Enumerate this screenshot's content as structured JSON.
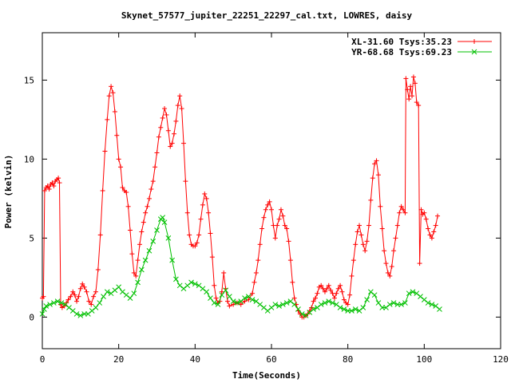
{
  "chart_data": {
    "type": "line",
    "title": "Skynet_57577_jupiter_22251_22297_cal.txt, LOWRES, daisy",
    "xlabel": "Time(Seconds)",
    "ylabel": "Power (kelvin)",
    "xlim": [
      0,
      120
    ],
    "ylim": [
      -2,
      18
    ],
    "xticks": [
      0,
      20,
      40,
      60,
      80,
      100,
      120
    ],
    "yticks": [
      0,
      5,
      10,
      15
    ],
    "legend_position": "top-right",
    "grid": false,
    "series": [
      {
        "name": "XL-31.60 Tsys:35.23",
        "color": "#ff0000",
        "marker": "plus",
        "points": [
          [
            0.0,
            1.2
          ],
          [
            0.3,
            1.3
          ],
          [
            0.6,
            8.0
          ],
          [
            1.0,
            8.2
          ],
          [
            1.4,
            8.3
          ],
          [
            1.8,
            8.1
          ],
          [
            2.2,
            8.4
          ],
          [
            2.6,
            8.5
          ],
          [
            3.0,
            8.3
          ],
          [
            3.4,
            8.6
          ],
          [
            3.8,
            8.7
          ],
          [
            4.2,
            8.8
          ],
          [
            4.5,
            8.5
          ],
          [
            4.8,
            0.8
          ],
          [
            5.2,
            0.6
          ],
          [
            5.8,
            0.7
          ],
          [
            6.3,
            0.9
          ],
          [
            6.8,
            1.1
          ],
          [
            7.4,
            1.3
          ],
          [
            8.0,
            1.6
          ],
          [
            8.5,
            1.4
          ],
          [
            9.0,
            1.0
          ],
          [
            9.5,
            1.3
          ],
          [
            10.0,
            1.8
          ],
          [
            10.5,
            2.1
          ],
          [
            11.0,
            1.9
          ],
          [
            11.6,
            1.6
          ],
          [
            12.2,
            1.0
          ],
          [
            12.8,
            0.8
          ],
          [
            13.4,
            1.3
          ],
          [
            14.0,
            1.6
          ],
          [
            14.6,
            3.0
          ],
          [
            15.2,
            5.2
          ],
          [
            15.8,
            8.0
          ],
          [
            16.4,
            10.5
          ],
          [
            17.0,
            12.5
          ],
          [
            17.5,
            14.0
          ],
          [
            18.0,
            14.6
          ],
          [
            18.5,
            14.2
          ],
          [
            19.0,
            13.0
          ],
          [
            19.5,
            11.5
          ],
          [
            20.0,
            10.0
          ],
          [
            20.5,
            9.5
          ],
          [
            21.0,
            8.2
          ],
          [
            21.5,
            8.0
          ],
          [
            22.0,
            7.9
          ],
          [
            22.5,
            7.0
          ],
          [
            23.0,
            5.5
          ],
          [
            23.5,
            4.0
          ],
          [
            24.0,
            2.8
          ],
          [
            24.5,
            2.6
          ],
          [
            25.0,
            3.6
          ],
          [
            25.5,
            4.6
          ],
          [
            26.0,
            5.4
          ],
          [
            26.5,
            6.0
          ],
          [
            27.0,
            6.6
          ],
          [
            27.5,
            7.0
          ],
          [
            28.0,
            7.5
          ],
          [
            28.5,
            8.1
          ],
          [
            29.0,
            8.6
          ],
          [
            29.5,
            9.5
          ],
          [
            30.0,
            10.4
          ],
          [
            30.5,
            11.4
          ],
          [
            31.0,
            12.0
          ],
          [
            31.5,
            12.6
          ],
          [
            32.0,
            13.2
          ],
          [
            32.5,
            12.8
          ],
          [
            33.0,
            11.8
          ],
          [
            33.5,
            10.8
          ],
          [
            34.0,
            11.0
          ],
          [
            34.5,
            11.6
          ],
          [
            35.0,
            12.4
          ],
          [
            35.5,
            13.4
          ],
          [
            36.0,
            14.0
          ],
          [
            36.5,
            13.2
          ],
          [
            37.0,
            11.0
          ],
          [
            37.5,
            8.6
          ],
          [
            38.0,
            6.6
          ],
          [
            38.5,
            5.2
          ],
          [
            39.0,
            4.6
          ],
          [
            39.5,
            4.5
          ],
          [
            40.0,
            4.5
          ],
          [
            40.5,
            4.7
          ],
          [
            41.0,
            5.2
          ],
          [
            41.5,
            6.2
          ],
          [
            42.0,
            7.1
          ],
          [
            42.5,
            7.8
          ],
          [
            43.0,
            7.5
          ],
          [
            43.5,
            6.6
          ],
          [
            44.0,
            5.3
          ],
          [
            44.5,
            3.8
          ],
          [
            45.0,
            2.0
          ],
          [
            45.5,
            1.2
          ],
          [
            46.0,
            0.9
          ],
          [
            46.5,
            1.0
          ],
          [
            47.0,
            1.6
          ],
          [
            47.5,
            2.8
          ],
          [
            48.0,
            1.8
          ],
          [
            48.5,
            1.0
          ],
          [
            49.0,
            0.7
          ],
          [
            50.0,
            0.8
          ],
          [
            51.0,
            0.9
          ],
          [
            52.0,
            0.8
          ],
          [
            53.0,
            1.0
          ],
          [
            54.0,
            1.1
          ],
          [
            55.0,
            1.5
          ],
          [
            55.5,
            2.2
          ],
          [
            56.0,
            2.8
          ],
          [
            56.5,
            3.6
          ],
          [
            57.0,
            4.6
          ],
          [
            57.5,
            5.6
          ],
          [
            58.0,
            6.3
          ],
          [
            58.5,
            6.8
          ],
          [
            59.0,
            7.1
          ],
          [
            59.5,
            7.3
          ],
          [
            60.0,
            6.8
          ],
          [
            60.5,
            5.8
          ],
          [
            61.0,
            5.0
          ],
          [
            61.5,
            5.8
          ],
          [
            62.0,
            6.2
          ],
          [
            62.5,
            6.8
          ],
          [
            63.0,
            6.4
          ],
          [
            63.5,
            5.8
          ],
          [
            64.0,
            5.6
          ],
          [
            64.5,
            4.8
          ],
          [
            65.0,
            3.6
          ],
          [
            65.5,
            2.2
          ],
          [
            66.0,
            1.2
          ],
          [
            66.5,
            0.8
          ],
          [
            67.0,
            0.4
          ],
          [
            67.5,
            0.2
          ],
          [
            68.0,
            0.0
          ],
          [
            68.5,
            0.0
          ],
          [
            69.0,
            0.1
          ],
          [
            69.5,
            0.2
          ],
          [
            70.0,
            0.4
          ],
          [
            70.5,
            0.6
          ],
          [
            71.0,
            1.0
          ],
          [
            71.5,
            1.2
          ],
          [
            72.0,
            1.5
          ],
          [
            72.5,
            1.9
          ],
          [
            73.0,
            2.0
          ],
          [
            73.5,
            1.8
          ],
          [
            74.0,
            1.6
          ],
          [
            74.5,
            1.8
          ],
          [
            75.0,
            2.0
          ],
          [
            75.5,
            1.7
          ],
          [
            76.0,
            1.5
          ],
          [
            76.5,
            1.2
          ],
          [
            77.0,
            1.5
          ],
          [
            77.5,
            1.8
          ],
          [
            78.0,
            2.0
          ],
          [
            78.5,
            1.6
          ],
          [
            79.0,
            1.1
          ],
          [
            79.5,
            0.9
          ],
          [
            80.0,
            0.8
          ],
          [
            80.5,
            1.4
          ],
          [
            81.0,
            2.6
          ],
          [
            81.5,
            3.6
          ],
          [
            82.0,
            4.6
          ],
          [
            82.5,
            5.4
          ],
          [
            83.0,
            5.8
          ],
          [
            83.5,
            5.2
          ],
          [
            84.0,
            4.6
          ],
          [
            84.5,
            4.2
          ],
          [
            85.0,
            4.8
          ],
          [
            85.5,
            5.8
          ],
          [
            86.0,
            7.4
          ],
          [
            86.5,
            8.8
          ],
          [
            87.0,
            9.7
          ],
          [
            87.5,
            9.9
          ],
          [
            88.0,
            9.0
          ],
          [
            88.5,
            7.0
          ],
          [
            89.0,
            5.6
          ],
          [
            89.5,
            4.2
          ],
          [
            90.0,
            3.4
          ],
          [
            90.5,
            2.8
          ],
          [
            91.0,
            2.6
          ],
          [
            91.5,
            3.2
          ],
          [
            92.0,
            4.2
          ],
          [
            92.5,
            5.0
          ],
          [
            93.0,
            5.8
          ],
          [
            93.5,
            6.6
          ],
          [
            94.0,
            7.0
          ],
          [
            94.5,
            6.8
          ],
          [
            95.0,
            6.6
          ],
          [
            95.2,
            15.1
          ],
          [
            95.6,
            14.4
          ],
          [
            96.0,
            13.8
          ],
          [
            96.4,
            14.6
          ],
          [
            96.8,
            14.0
          ],
          [
            97.2,
            15.2
          ],
          [
            97.6,
            14.8
          ],
          [
            98.0,
            13.6
          ],
          [
            98.5,
            13.4
          ],
          [
            98.8,
            3.4
          ],
          [
            99.2,
            6.8
          ],
          [
            99.6,
            6.5
          ],
          [
            100.0,
            6.6
          ],
          [
            100.5,
            6.2
          ],
          [
            101.0,
            5.6
          ],
          [
            101.5,
            5.2
          ],
          [
            102.0,
            5.0
          ],
          [
            102.5,
            5.4
          ],
          [
            103.0,
            5.8
          ],
          [
            103.5,
            6.4
          ]
        ]
      },
      {
        "name": "YR-68.68 Tsys:69.23",
        "color": "#00c000",
        "marker": "cross",
        "points": [
          [
            0.0,
            0.2
          ],
          [
            0.5,
            0.5
          ],
          [
            1.0,
            0.7
          ],
          [
            2.0,
            0.8
          ],
          [
            3.0,
            0.9
          ],
          [
            4.0,
            1.0
          ],
          [
            5.0,
            0.9
          ],
          [
            6.0,
            0.8
          ],
          [
            7.0,
            0.6
          ],
          [
            8.0,
            0.4
          ],
          [
            9.0,
            0.2
          ],
          [
            10.0,
            0.1
          ],
          [
            11.0,
            0.2
          ],
          [
            12.0,
            0.2
          ],
          [
            13.0,
            0.4
          ],
          [
            14.0,
            0.6
          ],
          [
            15.0,
            0.9
          ],
          [
            16.0,
            1.3
          ],
          [
            17.0,
            1.6
          ],
          [
            18.0,
            1.5
          ],
          [
            19.0,
            1.7
          ],
          [
            20.0,
            1.9
          ],
          [
            21.0,
            1.6
          ],
          [
            22.0,
            1.4
          ],
          [
            23.0,
            1.2
          ],
          [
            24.0,
            1.5
          ],
          [
            25.0,
            2.2
          ],
          [
            26.0,
            3.0
          ],
          [
            27.0,
            3.6
          ],
          [
            28.0,
            4.2
          ],
          [
            29.0,
            4.8
          ],
          [
            30.0,
            5.5
          ],
          [
            31.0,
            6.2
          ],
          [
            31.5,
            6.3
          ],
          [
            32.0,
            6.0
          ],
          [
            33.0,
            5.0
          ],
          [
            34.0,
            3.6
          ],
          [
            35.0,
            2.4
          ],
          [
            36.0,
            2.0
          ],
          [
            37.0,
            1.8
          ],
          [
            38.0,
            2.0
          ],
          [
            39.0,
            2.2
          ],
          [
            40.0,
            2.1
          ],
          [
            41.0,
            2.0
          ],
          [
            42.0,
            1.8
          ],
          [
            43.0,
            1.6
          ],
          [
            44.0,
            1.2
          ],
          [
            45.0,
            0.9
          ],
          [
            46.0,
            0.8
          ],
          [
            47.0,
            1.4
          ],
          [
            48.0,
            1.7
          ],
          [
            49.0,
            1.3
          ],
          [
            50.0,
            1.0
          ],
          [
            51.0,
            0.9
          ],
          [
            52.0,
            1.0
          ],
          [
            53.0,
            1.2
          ],
          [
            54.0,
            1.3
          ],
          [
            55.0,
            1.1
          ],
          [
            56.0,
            1.0
          ],
          [
            57.0,
            0.8
          ],
          [
            58.0,
            0.6
          ],
          [
            59.0,
            0.4
          ],
          [
            60.0,
            0.6
          ],
          [
            61.0,
            0.8
          ],
          [
            62.0,
            0.7
          ],
          [
            63.0,
            0.8
          ],
          [
            64.0,
            0.9
          ],
          [
            65.0,
            1.0
          ],
          [
            66.0,
            0.8
          ],
          [
            67.0,
            0.5
          ],
          [
            68.0,
            0.2
          ],
          [
            69.0,
            0.1
          ],
          [
            70.0,
            0.3
          ],
          [
            71.0,
            0.5
          ],
          [
            72.0,
            0.6
          ],
          [
            73.0,
            0.8
          ],
          [
            74.0,
            0.9
          ],
          [
            75.0,
            1.0
          ],
          [
            76.0,
            0.9
          ],
          [
            77.0,
            0.8
          ],
          [
            78.0,
            0.6
          ],
          [
            79.0,
            0.5
          ],
          [
            80.0,
            0.4
          ],
          [
            81.0,
            0.4
          ],
          [
            82.0,
            0.5
          ],
          [
            83.0,
            0.4
          ],
          [
            84.0,
            0.6
          ],
          [
            85.0,
            1.1
          ],
          [
            86.0,
            1.6
          ],
          [
            87.0,
            1.4
          ],
          [
            88.0,
            0.9
          ],
          [
            89.0,
            0.6
          ],
          [
            90.0,
            0.6
          ],
          [
            91.0,
            0.8
          ],
          [
            92.0,
            0.9
          ],
          [
            93.0,
            0.8
          ],
          [
            94.0,
            0.8
          ],
          [
            95.0,
            0.9
          ],
          [
            96.0,
            1.5
          ],
          [
            97.0,
            1.6
          ],
          [
            98.0,
            1.5
          ],
          [
            99.0,
            1.3
          ],
          [
            100.0,
            1.1
          ],
          [
            101.0,
            0.9
          ],
          [
            102.0,
            0.8
          ],
          [
            103.0,
            0.7
          ],
          [
            104.0,
            0.5
          ]
        ]
      }
    ]
  }
}
